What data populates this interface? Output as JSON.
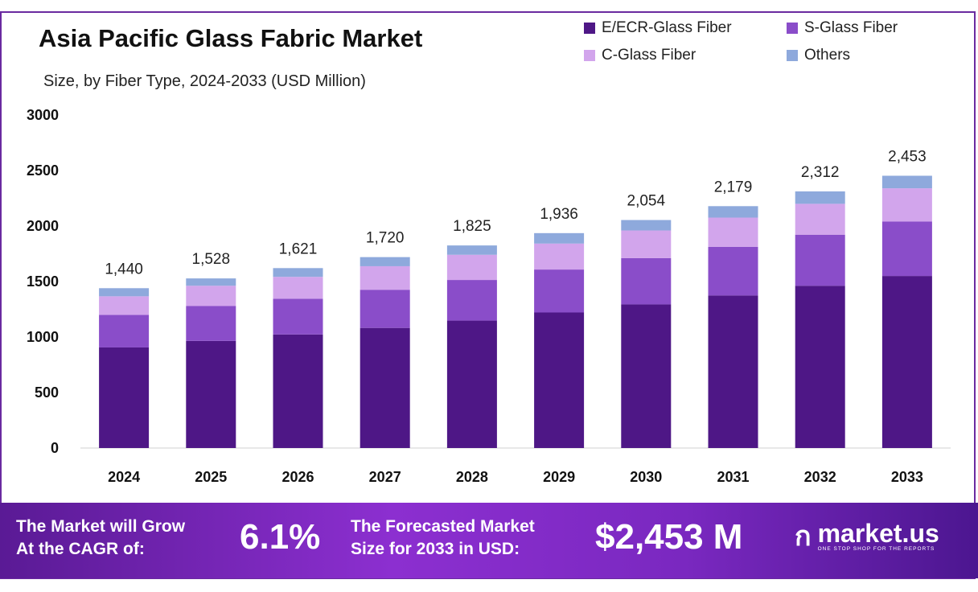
{
  "chart_data": {
    "type": "bar",
    "stacked": true,
    "title": "Asia Pacific Glass Fabric Market",
    "subtitle": "Size, by Fiber Type, 2024-2033 (USD Million)",
    "categories": [
      "2024",
      "2025",
      "2026",
      "2027",
      "2028",
      "2029",
      "2030",
      "2031",
      "2032",
      "2033"
    ],
    "series": [
      {
        "name": "E/ECR-Glass Fiber",
        "color": "#4e1786",
        "values": [
          906,
          965,
          1023,
          1082,
          1148,
          1221,
          1294,
          1374,
          1462,
          1550
        ]
      },
      {
        "name": "S-Glass Fiber",
        "color": "#8a4dc9",
        "values": [
          293,
          314,
          322,
          344,
          366,
          387,
          417,
          439,
          460,
          490
        ]
      },
      {
        "name": "C-Glass Fiber",
        "color": "#d2a5ec",
        "values": [
          168,
          183,
          197,
          212,
          227,
          234,
          249,
          263,
          278,
          300
        ]
      },
      {
        "name": "Others",
        "color": "#8ea9dc",
        "values": [
          73,
          66,
          79,
          82,
          84,
          94,
          94,
          103,
          112,
          113
        ]
      }
    ],
    "totals": [
      "1,440",
      "1,528",
      "1,621",
      "1,720",
      "1,825",
      "1,936",
      "2,054",
      "2,179",
      "2,312",
      "2,453"
    ],
    "total_values": [
      1440,
      1528,
      1621,
      1720,
      1825,
      1936,
      2054,
      2179,
      2312,
      2453
    ],
    "yticks": [
      "0",
      "500",
      "1000",
      "1500",
      "2000",
      "2500",
      "3000"
    ],
    "ylim": [
      0,
      3000
    ],
    "grid": false,
    "legend_position": "top-right",
    "xlabel": "",
    "ylabel": ""
  },
  "banner": {
    "cagr_label_1": "The Market will Grow",
    "cagr_label_2": "At the CAGR of:",
    "cagr_value": "6.1%",
    "forecast_label_1": "The Forecasted Market",
    "forecast_label_2": "Size for 2033 in USD:",
    "forecast_value": "$2,453 M",
    "brand": "market.us",
    "tagline": "ONE STOP SHOP FOR THE REPORTS"
  }
}
